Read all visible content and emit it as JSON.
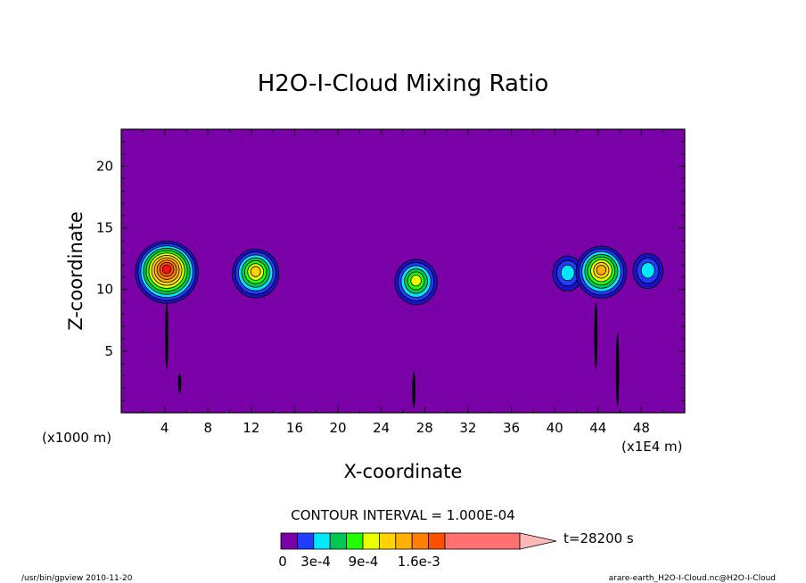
{
  "chart_data": {
    "type": "contour",
    "title": "H2O-I-Cloud Mixing Ratio",
    "xlabel": "X-coordinate",
    "ylabel": "Z-coordinate",
    "x_unit_left": "(x1000 m)",
    "x_unit_right": "(x1E4 m)",
    "xlim": [
      0,
      52
    ],
    "ylim": [
      0,
      23
    ],
    "x_ticks": [
      4,
      8,
      12,
      16,
      20,
      24,
      28,
      32,
      36,
      40,
      44,
      48
    ],
    "y_ticks": [
      5,
      10,
      15,
      20
    ],
    "background_color": "#7a00a8",
    "levels_colors": [
      "#7a00a8",
      "#1a10c8",
      "#1f3cff",
      "#00e8ff",
      "#00c850",
      "#22ff00",
      "#e8ff00",
      "#ffd400",
      "#ffb000",
      "#ff8000",
      "#ff5000",
      "#ff1010",
      "#ff7070",
      "#ffb8b8"
    ],
    "colorbar_labels": [
      "0",
      "3e-4",
      "9e-4",
      "1.6e-3"
    ],
    "contour_interval": "CONTOUR INTERVAL = 1.000E-04",
    "time_label": "t=28200 s",
    "cloud_features": [
      {
        "x": 4.2,
        "z": 11.4,
        "max_level": 11
      },
      {
        "x": 12.4,
        "z": 11.3,
        "max_level": 7
      },
      {
        "x": 27.2,
        "z": 10.6,
        "max_level": 6
      },
      {
        "x": 41.2,
        "z": 11.3,
        "max_level": 3
      },
      {
        "x": 44.3,
        "z": 11.4,
        "max_level": 8
      },
      {
        "x": 48.6,
        "z": 11.5,
        "max_level": 3
      }
    ],
    "thin_streaks": [
      {
        "x": 4.2,
        "z_bottom": 3.5,
        "z_top": 9.0
      },
      {
        "x": 5.4,
        "z_bottom": 1.6,
        "z_top": 3.2
      },
      {
        "x": 27.0,
        "z_bottom": 0.4,
        "z_top": 3.3
      },
      {
        "x": 43.8,
        "z_bottom": 3.5,
        "z_top": 9.0
      },
      {
        "x": 45.8,
        "z_bottom": 0.5,
        "z_top": 6.5
      }
    ]
  },
  "footer": {
    "left": "/usr/bin/gpview   2010-11-20",
    "right": "arare-earth_H2O-I-Cloud.nc@H2O-I-Cloud"
  }
}
